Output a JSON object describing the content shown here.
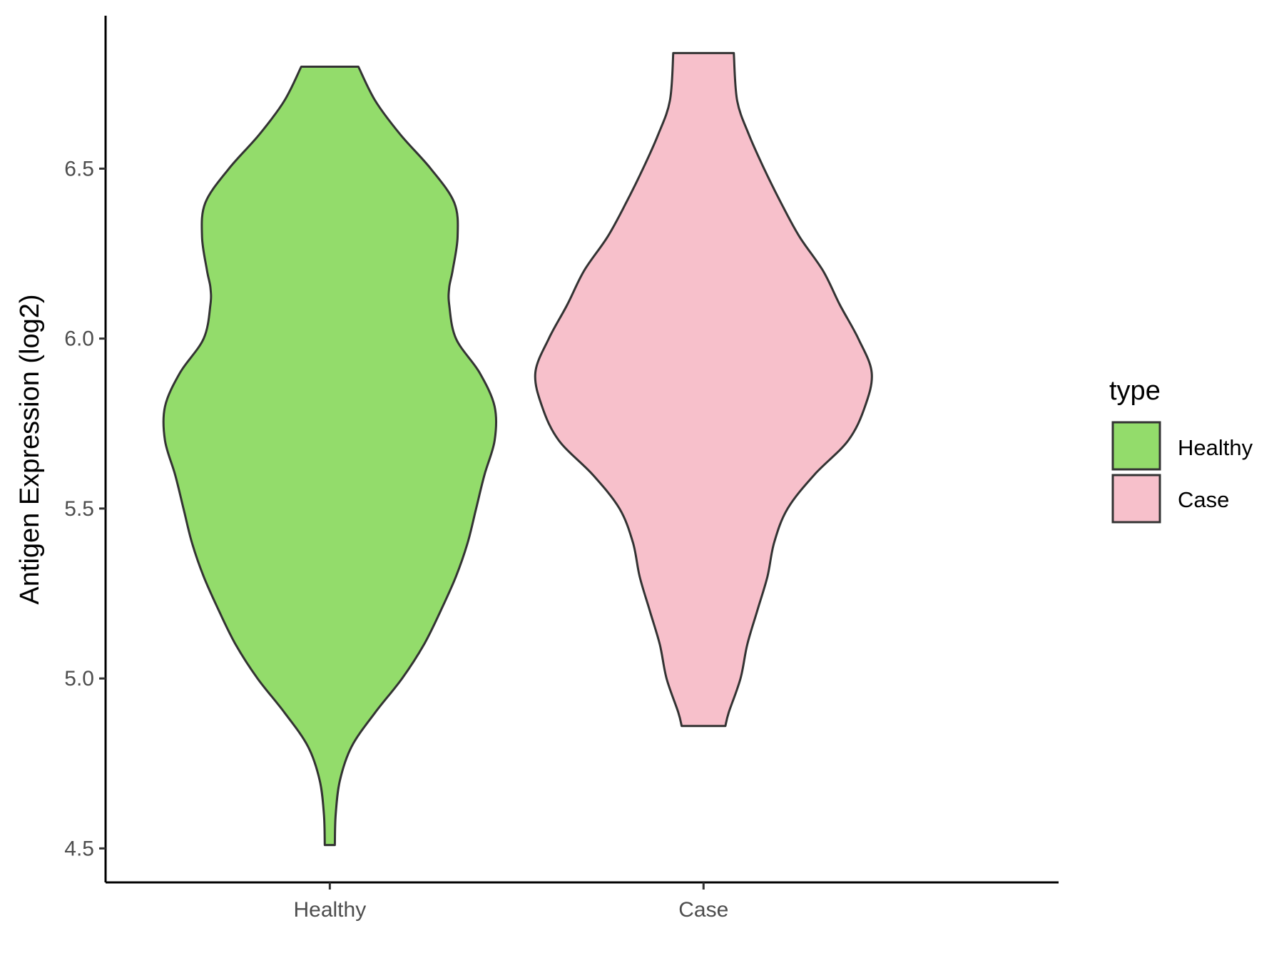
{
  "chart_data": {
    "type": "violin",
    "ylabel": "Antigen Expression (log2)",
    "xlabel": "",
    "categories": [
      "Healthy",
      "Case"
    ],
    "ylim": [
      4.4,
      6.95
    ],
    "yticks": [
      4.5,
      5.0,
      5.5,
      6.0,
      6.5
    ],
    "ytick_labels": [
      "4.5",
      "5.0",
      "5.5",
      "6.0",
      "6.5"
    ],
    "grid": false,
    "legend": {
      "title": "type",
      "position": "right",
      "entries": [
        {
          "label": "Healthy",
          "color": "#93DC6B"
        },
        {
          "label": "Case",
          "color": "#F7C0CB"
        }
      ]
    },
    "series": [
      {
        "category": "Healthy",
        "color": "#93DC6B",
        "min": 4.51,
        "max": 6.8,
        "density_profile": [
          [
            4.51,
            0.03
          ],
          [
            4.6,
            0.035
          ],
          [
            4.7,
            0.06
          ],
          [
            4.8,
            0.13
          ],
          [
            4.9,
            0.27
          ],
          [
            5.0,
            0.43
          ],
          [
            5.1,
            0.56
          ],
          [
            5.2,
            0.66
          ],
          [
            5.3,
            0.75
          ],
          [
            5.4,
            0.82
          ],
          [
            5.5,
            0.87
          ],
          [
            5.6,
            0.92
          ],
          [
            5.7,
            0.98
          ],
          [
            5.8,
            0.98
          ],
          [
            5.9,
            0.89
          ],
          [
            6.0,
            0.75
          ],
          [
            6.1,
            0.71
          ],
          [
            6.15,
            0.71
          ],
          [
            6.2,
            0.73
          ],
          [
            6.3,
            0.76
          ],
          [
            6.4,
            0.74
          ],
          [
            6.5,
            0.6
          ],
          [
            6.6,
            0.42
          ],
          [
            6.7,
            0.27
          ],
          [
            6.8,
            0.17
          ]
        ]
      },
      {
        "category": "Case",
        "color": "#F7C0CB",
        "min": 4.86,
        "max": 6.84,
        "density_profile": [
          [
            4.86,
            0.13
          ],
          [
            4.9,
            0.15
          ],
          [
            5.0,
            0.22
          ],
          [
            5.1,
            0.26
          ],
          [
            5.2,
            0.32
          ],
          [
            5.3,
            0.38
          ],
          [
            5.4,
            0.42
          ],
          [
            5.5,
            0.5
          ],
          [
            5.6,
            0.66
          ],
          [
            5.7,
            0.86
          ],
          [
            5.8,
            0.96
          ],
          [
            5.9,
            1.0
          ],
          [
            6.0,
            0.92
          ],
          [
            6.1,
            0.81
          ],
          [
            6.2,
            0.71
          ],
          [
            6.3,
            0.57
          ],
          [
            6.4,
            0.46
          ],
          [
            6.5,
            0.36
          ],
          [
            6.6,
            0.27
          ],
          [
            6.7,
            0.2
          ],
          [
            6.84,
            0.18
          ]
        ]
      }
    ]
  }
}
